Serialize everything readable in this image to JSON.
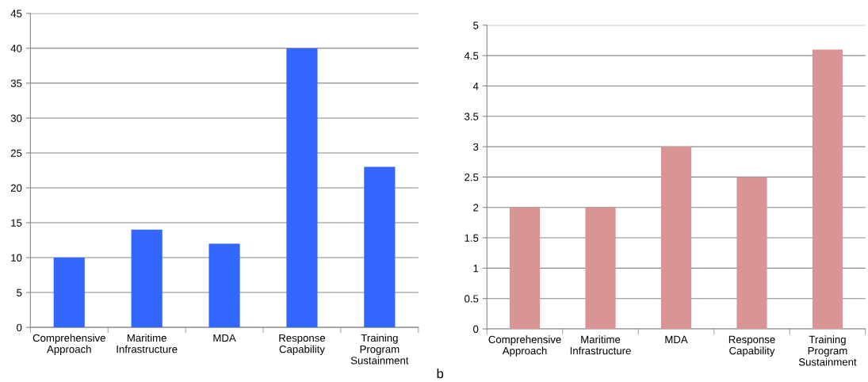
{
  "chart_data": [
    {
      "type": "bar",
      "categories": [
        "Comprehensive Approach",
        "Maritime Infrastructure",
        "MDA",
        "Response Capability",
        "Training Program Sustainment"
      ],
      "values": [
        10,
        14,
        12,
        40,
        23
      ],
      "color": "#3366ff",
      "ylim": [
        0,
        45
      ],
      "yticks": [
        0,
        5,
        10,
        15,
        20,
        25,
        30,
        35,
        40,
        45
      ],
      "grid": "y",
      "legend": false
    },
    {
      "type": "bar",
      "categories": [
        "Comprehensive Approach",
        "Maritime Infrastructure",
        "MDA",
        "Response Capability",
        "Training Program Sustainment"
      ],
      "values": [
        2,
        2,
        3,
        2.5,
        4.6
      ],
      "color": "#d99594",
      "ylim": [
        0,
        5
      ],
      "yticks": [
        0,
        {
          "value": 0.5,
          "label": "0.5"
        },
        1,
        {
          "value": 1.5,
          "label": "1.5"
        },
        2,
        {
          "value": 2.5,
          "label": "2.5"
        },
        3,
        {
          "value": 3.5,
          "label": "3.5"
        },
        4,
        {
          "value": 4.5,
          "label": "4.5"
        },
        5
      ],
      "grid": "y",
      "legend": false,
      "annotations": [
        "b"
      ]
    }
  ]
}
